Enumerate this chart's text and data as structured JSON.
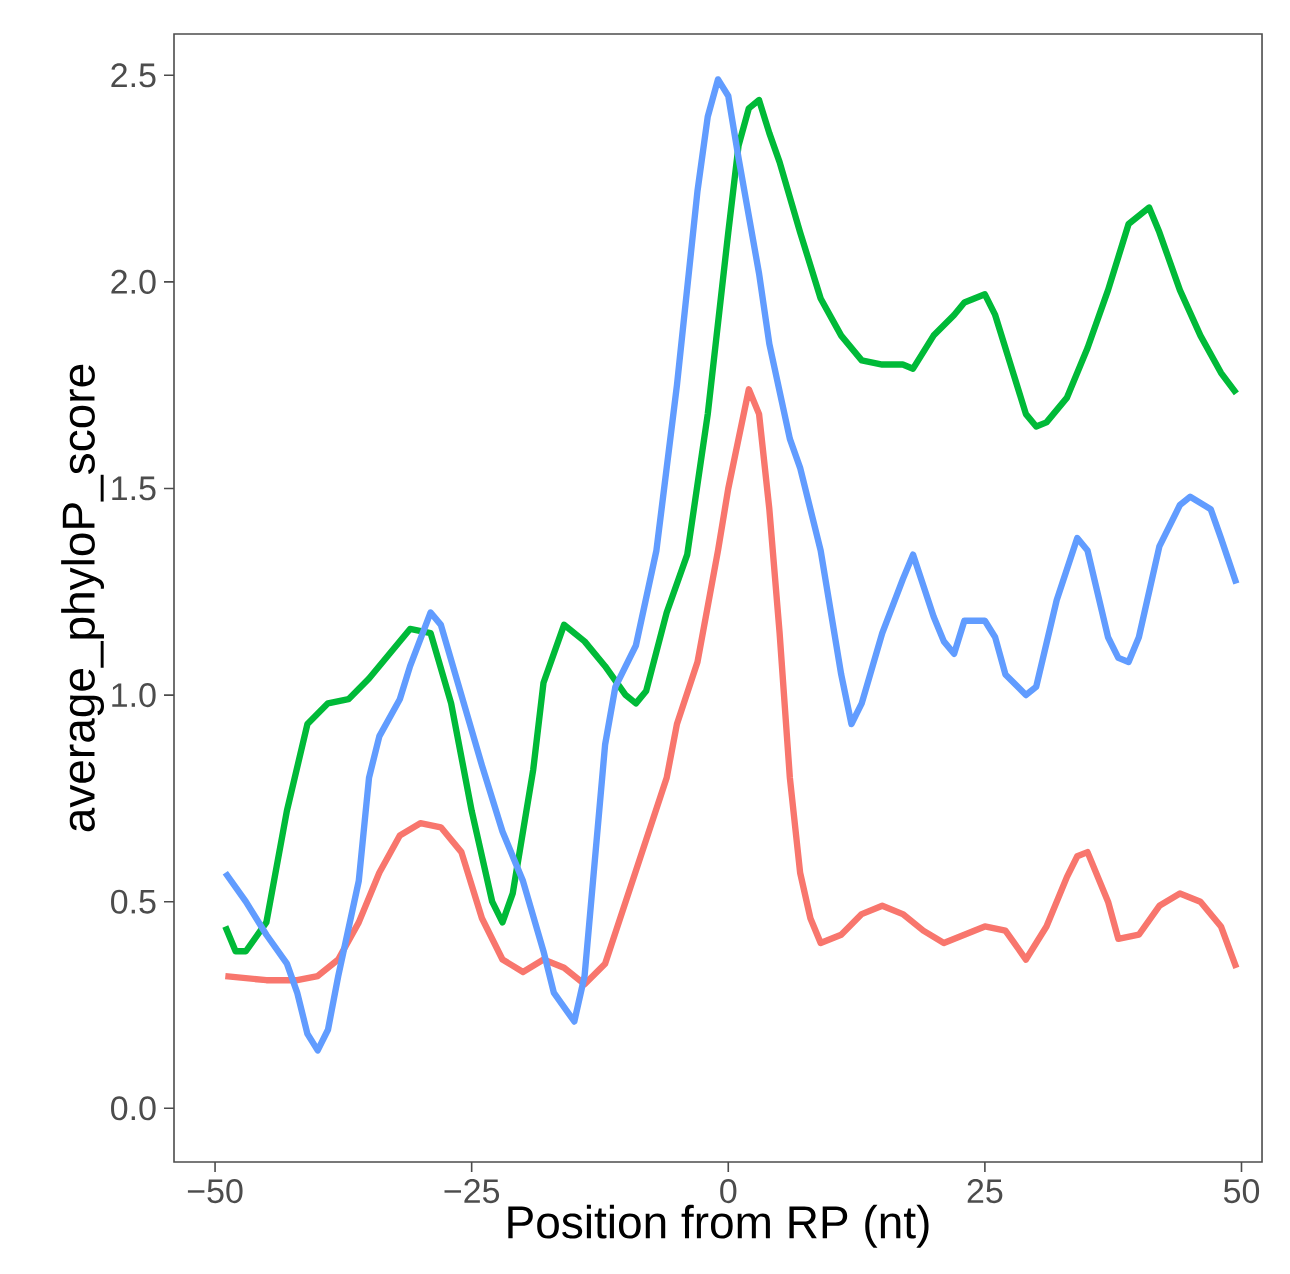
{
  "chart_data": {
    "type": "line",
    "xlabel": "Position from RP (nt)",
    "ylabel": "average_phyloP_score",
    "xlim": [
      -54,
      52
    ],
    "ylim": [
      -0.13,
      2.6
    ],
    "xticks": [
      {
        "value": -50,
        "label": "−50"
      },
      {
        "value": -25,
        "label": "−25"
      },
      0,
      25,
      50
    ],
    "yticks": [
      {
        "value": 0,
        "label": "0.0"
      },
      {
        "value": 0.5,
        "label": "0.5"
      },
      {
        "value": 1,
        "label": "1.0"
      },
      {
        "value": 1.5,
        "label": "1.5"
      },
      {
        "value": 2,
        "label": "2.0"
      },
      {
        "value": 2.5,
        "label": "2.5"
      }
    ],
    "grid": false,
    "line_style": "solid",
    "marker": "none",
    "series": [
      {
        "color": "#f8766d",
        "x": [
          -49,
          -45,
          -42,
          -40,
          -38,
          -36,
          -34,
          -32,
          -30,
          -28,
          -26,
          -24,
          -22,
          -20,
          -18,
          -16,
          -14,
          -12,
          -10,
          -8,
          -6,
          -5,
          -3,
          -1,
          0,
          1,
          2,
          3,
          4,
          5,
          6,
          7,
          8,
          9,
          11,
          13,
          15,
          17,
          19,
          21,
          23,
          25,
          27,
          29,
          31,
          33,
          34,
          35,
          37,
          38,
          40,
          42,
          44,
          46,
          48,
          49.5
        ],
        "values": [
          0.32,
          0.31,
          0.31,
          0.32,
          0.36,
          0.45,
          0.57,
          0.66,
          0.69,
          0.68,
          0.62,
          0.46,
          0.36,
          0.33,
          0.36,
          0.34,
          0.3,
          0.35,
          0.5,
          0.65,
          0.8,
          0.93,
          1.08,
          1.35,
          1.5,
          1.62,
          1.74,
          1.68,
          1.45,
          1.15,
          0.8,
          0.57,
          0.46,
          0.4,
          0.42,
          0.47,
          0.49,
          0.47,
          0.43,
          0.4,
          0.42,
          0.44,
          0.43,
          0.36,
          0.44,
          0.56,
          0.61,
          0.62,
          0.5,
          0.41,
          0.42,
          0.49,
          0.52,
          0.5,
          0.44,
          0.34
        ]
      },
      {
        "color": "#00ba38",
        "x": [
          -49,
          -48,
          -47,
          -45,
          -43,
          -41,
          -39,
          -37,
          -35,
          -33,
          -31,
          -29,
          -27,
          -25,
          -23,
          -22,
          -21,
          -19,
          -18,
          -16,
          -14,
          -12,
          -10,
          -9,
          -8,
          -6,
          -4,
          -2,
          0,
          1,
          2,
          3,
          4,
          5,
          7,
          9,
          11,
          13,
          15,
          17,
          18,
          20,
          22,
          23,
          25,
          26,
          28,
          29,
          30,
          31,
          33,
          35,
          37,
          39,
          41,
          42,
          44,
          46,
          48,
          49.5
        ],
        "values": [
          0.44,
          0.38,
          0.38,
          0.45,
          0.72,
          0.93,
          0.98,
          0.99,
          1.04,
          1.1,
          1.16,
          1.15,
          0.98,
          0.72,
          0.5,
          0.45,
          0.52,
          0.82,
          1.03,
          1.17,
          1.13,
          1.07,
          1.0,
          0.98,
          1.01,
          1.2,
          1.34,
          1.68,
          2.12,
          2.33,
          2.42,
          2.44,
          2.36,
          2.29,
          2.12,
          1.96,
          1.87,
          1.81,
          1.8,
          1.8,
          1.79,
          1.87,
          1.92,
          1.95,
          1.97,
          1.92,
          1.76,
          1.68,
          1.65,
          1.66,
          1.72,
          1.84,
          1.98,
          2.14,
          2.18,
          2.12,
          1.98,
          1.87,
          1.78,
          1.73
        ]
      },
      {
        "color": "#619cff",
        "x": [
          -49,
          -47,
          -45,
          -43,
          -42,
          -41,
          -40,
          -39,
          -38,
          -36,
          -35,
          -34,
          -32,
          -31,
          -29,
          -28,
          -26,
          -24,
          -22,
          -20,
          -18,
          -17,
          -15,
          -14,
          -12,
          -11,
          -9,
          -7,
          -5,
          -3,
          -2,
          -1,
          0,
          1,
          3,
          4,
          6,
          7,
          9,
          11,
          12,
          13,
          15,
          17,
          18,
          20,
          21,
          22,
          23,
          25,
          26,
          27,
          29,
          30,
          32,
          34,
          35,
          37,
          38,
          39,
          40,
          42,
          44,
          45,
          47,
          48,
          49.5
        ],
        "values": [
          0.57,
          0.5,
          0.42,
          0.35,
          0.28,
          0.18,
          0.14,
          0.19,
          0.32,
          0.55,
          0.8,
          0.9,
          0.99,
          1.07,
          1.2,
          1.17,
          1.0,
          0.83,
          0.67,
          0.55,
          0.38,
          0.28,
          0.21,
          0.32,
          0.88,
          1.02,
          1.12,
          1.35,
          1.75,
          2.22,
          2.4,
          2.49,
          2.45,
          2.3,
          2.02,
          1.85,
          1.62,
          1.55,
          1.35,
          1.05,
          0.93,
          0.98,
          1.15,
          1.28,
          1.34,
          1.19,
          1.13,
          1.1,
          1.18,
          1.18,
          1.14,
          1.05,
          1.0,
          1.02,
          1.23,
          1.38,
          1.35,
          1.14,
          1.09,
          1.08,
          1.14,
          1.36,
          1.46,
          1.48,
          1.45,
          1.38,
          1.27
        ]
      }
    ]
  }
}
